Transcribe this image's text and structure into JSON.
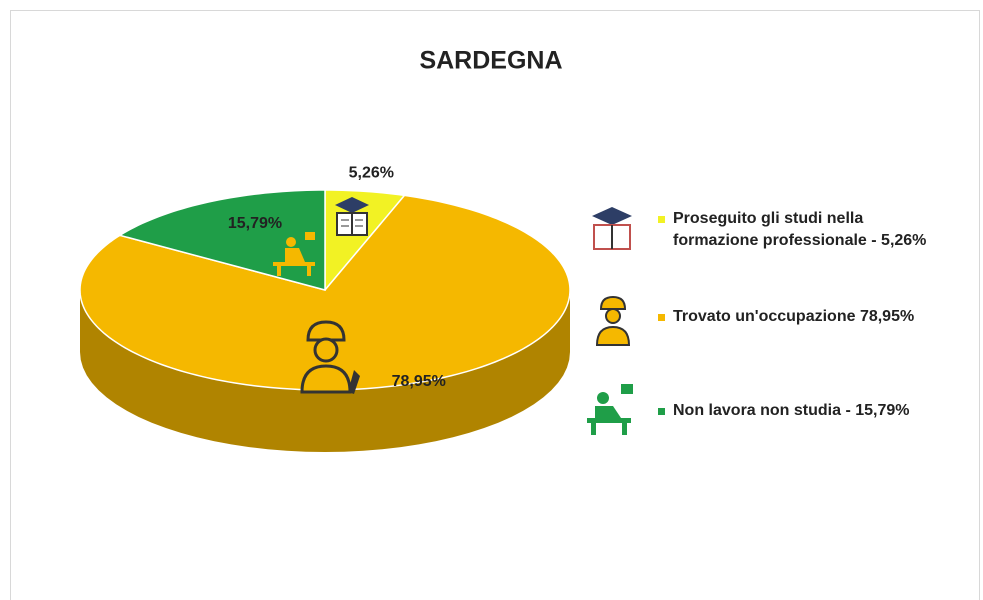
{
  "chart_data": {
    "type": "pie",
    "title": "SARDEGNA",
    "categories": [
      "Proseguito gli studi nella formazione professionale - 5,26%",
      "Trovato un'occupazione 78,95%",
      "Non lavora non studia - 15,79%"
    ],
    "values": [
      5.26,
      78.95,
      15.79
    ],
    "value_labels": [
      "5,26%",
      "78,95%",
      "15,79%"
    ],
    "colors": [
      "#f2f224",
      "#f5b800",
      "#1f9e48"
    ]
  }
}
